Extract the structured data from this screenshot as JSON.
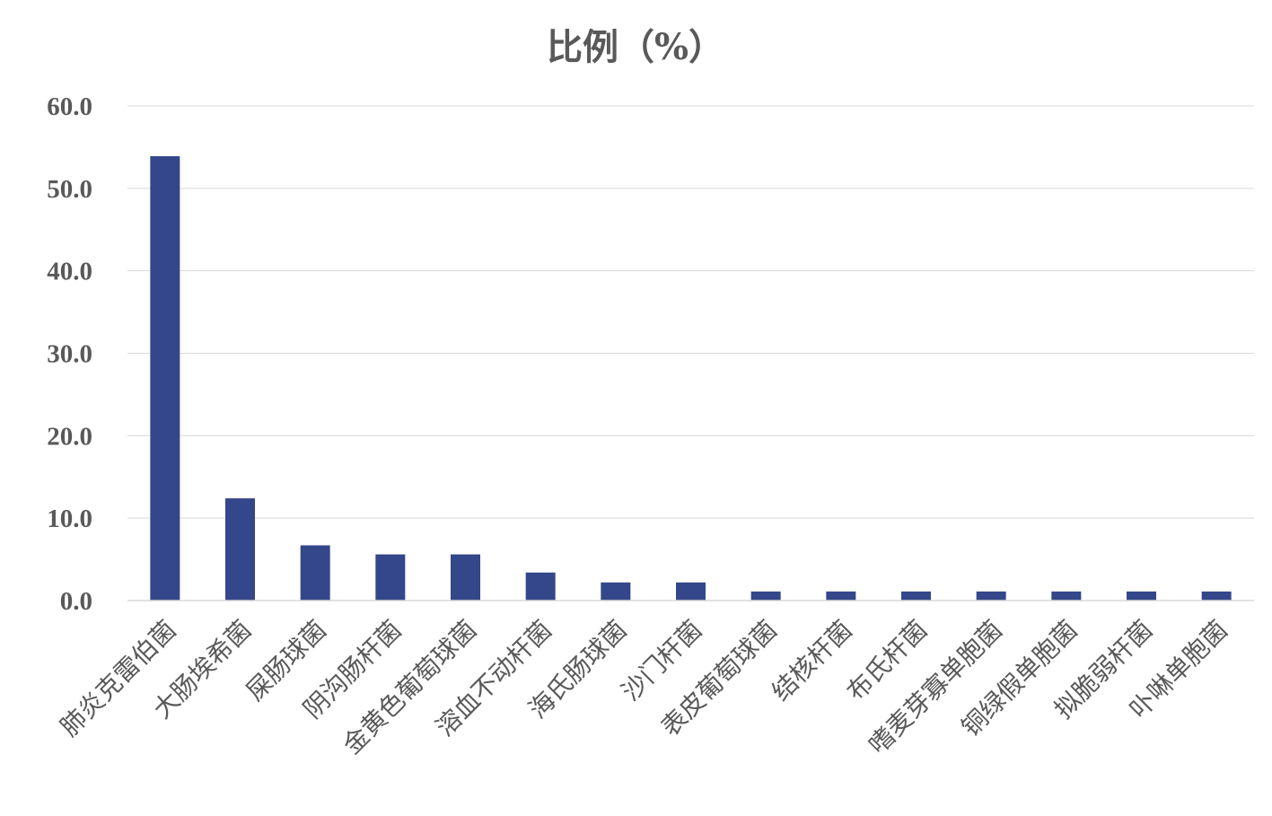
{
  "chart_data": {
    "type": "bar",
    "title": "比例（%）",
    "xlabel": "",
    "ylabel": "",
    "ylim": [
      0,
      60
    ],
    "yticks": [
      "0.0",
      "10.0",
      "20.0",
      "30.0",
      "40.0",
      "50.0",
      "60.0"
    ],
    "grid": true,
    "legend": "none",
    "bar_color": "#34478a",
    "categories": [
      "肺炎克雷伯菌",
      "大肠埃希菌",
      "屎肠球菌",
      "阴沟肠杆菌",
      "金黄色葡萄球菌",
      "溶血不动杆菌",
      "海氏肠球菌",
      "沙门杆菌",
      "表皮葡萄球菌",
      "结核杆菌",
      "布氏杆菌",
      "嗜麦芽寡单胞菌",
      "铜绿假单胞菌",
      "拟脆弱杆菌",
      "卟啉单胞菌"
    ],
    "values": [
      53.9,
      12.4,
      6.7,
      5.6,
      5.6,
      3.4,
      2.2,
      2.2,
      1.1,
      1.1,
      1.1,
      1.1,
      1.1,
      1.1,
      1.1
    ]
  }
}
